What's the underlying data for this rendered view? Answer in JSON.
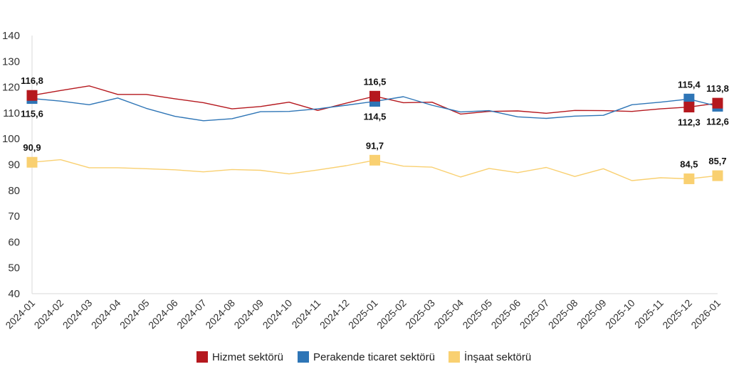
{
  "chart_data": {
    "type": "line",
    "title": "",
    "xlabel": "",
    "ylabel": "",
    "ylim": [
      40,
      140
    ],
    "yticks": [
      "40",
      "50",
      "60",
      "70",
      "80",
      "90",
      "100",
      "110",
      "120",
      "130",
      "140"
    ],
    "grid": false,
    "legend_position": "bottom",
    "categories": [
      "2024-01",
      "2024-02",
      "2024-03",
      "2024-04",
      "2024-05",
      "2024-06",
      "2024-07",
      "2024-08",
      "2024-09",
      "2024-10",
      "2024-11",
      "2024-12",
      "2025-01",
      "2025-02",
      "2025-03",
      "2025-04",
      "2025-05",
      "2025-06",
      "2025-07",
      "2025-08",
      "2025-09",
      "2025-10",
      "2025-11",
      "2025-12",
      "2026-01"
    ],
    "series": [
      {
        "name": "Hizmet sektörü",
        "color": "#B5181E",
        "values": [
          116.8,
          118.7,
          120.5,
          117.2,
          117.2,
          115.5,
          114.0,
          111.6,
          112.5,
          114.2,
          111.0,
          113.8,
          116.5,
          114.0,
          114.2,
          109.6,
          110.6,
          110.8,
          109.9,
          111.0,
          110.9,
          110.6,
          111.6,
          112.3,
          113.8
        ],
        "labels": [
          {
            "index": 0,
            "text": "116,8"
          },
          {
            "index": 12,
            "text": "116,5"
          },
          {
            "index": 23,
            "text": "112,3"
          },
          {
            "index": 24,
            "text": "113,8"
          }
        ]
      },
      {
        "name": "Perakende ticaret sektörü",
        "color": "#2E75B6",
        "values": [
          115.6,
          114.6,
          113.2,
          115.8,
          111.8,
          108.7,
          107.0,
          107.8,
          110.5,
          110.6,
          111.6,
          113.0,
          114.5,
          116.3,
          113.0,
          110.4,
          110.9,
          108.5,
          107.9,
          108.8,
          109.1,
          113.2,
          114.2,
          115.4,
          112.6
        ],
        "labels": [
          {
            "index": 0,
            "text": "115,6"
          },
          {
            "index": 12,
            "text": "114,5"
          },
          {
            "index": 23,
            "text": "115,4"
          },
          {
            "index": 24,
            "text": "112,6"
          }
        ]
      },
      {
        "name": "İnşaat sektörü",
        "color": "#F9D071",
        "values": [
          90.9,
          91.9,
          88.8,
          88.8,
          88.4,
          88.0,
          87.2,
          88.1,
          87.8,
          86.4,
          87.9,
          89.6,
          91.7,
          89.4,
          89.0,
          85.2,
          88.5,
          86.9,
          88.9,
          85.4,
          88.4,
          83.8,
          84.9,
          84.5,
          85.7
        ],
        "labels": [
          {
            "index": 0,
            "text": "90,9"
          },
          {
            "index": 12,
            "text": "91,7"
          },
          {
            "index": 23,
            "text": "84,5"
          },
          {
            "index": 24,
            "text": "85,7"
          }
        ]
      }
    ],
    "markers_at": [
      0,
      12,
      23,
      24
    ]
  }
}
